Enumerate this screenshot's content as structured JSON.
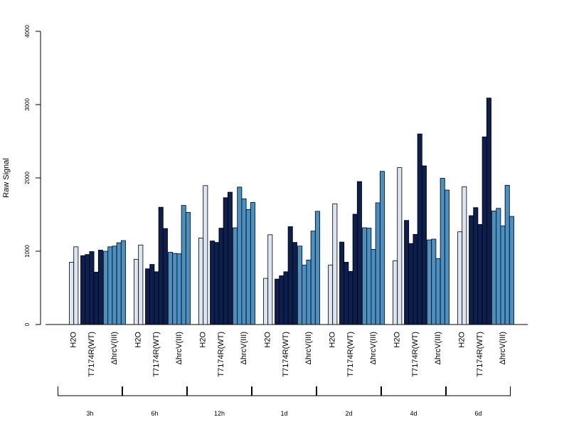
{
  "chart_data": {
    "type": "bar",
    "ylabel": "Raw Signal",
    "ylim": [
      0,
      4000
    ],
    "yticks": [
      "0",
      "1000",
      "2000",
      "3000",
      "4000"
    ],
    "group_labels": [
      "H2O",
      "T7174R(WT)",
      "ΔhrcV(III)"
    ],
    "group_colors": [
      "#dce6f2",
      "#0d1f4f",
      "#4a90c2"
    ],
    "timepoints": [
      {
        "label": "3h",
        "groups": [
          [
            850,
            1060
          ],
          [
            940,
            955,
            995,
            715,
            1015
          ],
          [
            1000,
            1060,
            1070,
            1115,
            1145
          ]
        ]
      },
      {
        "label": "6h",
        "groups": [
          [
            890,
            1085
          ],
          [
            760,
            820,
            720,
            1600,
            1310
          ],
          [
            985,
            970,
            965,
            1625,
            1530
          ]
        ]
      },
      {
        "label": "12h",
        "groups": [
          [
            1180,
            1895
          ],
          [
            1140,
            1120,
            1315,
            1730,
            1805
          ],
          [
            1320,
            1875,
            1715,
            1570,
            1665
          ]
        ]
      },
      {
        "label": "1d",
        "groups": [
          [
            630,
            1225
          ],
          [
            620,
            665,
            720,
            1335,
            1120
          ],
          [
            1070,
            810,
            880,
            1275,
            1545
          ]
        ]
      },
      {
        "label": "2d",
        "groups": [
          [
            810,
            1645
          ],
          [
            1125,
            850,
            725,
            1505,
            1950
          ],
          [
            1320,
            1315,
            1025,
            1660,
            2090
          ]
        ]
      },
      {
        "label": "4d",
        "groups": [
          [
            870,
            2140
          ],
          [
            1420,
            1105,
            1230,
            2600,
            2165
          ],
          [
            1155,
            1165,
            900,
            1995,
            1835
          ]
        ]
      },
      {
        "label": "6d",
        "groups": [
          [
            1265,
            1880
          ],
          [
            1485,
            1595,
            1365,
            2560,
            3090
          ],
          [
            1550,
            1585,
            1345,
            1900,
            1475
          ]
        ]
      }
    ]
  }
}
